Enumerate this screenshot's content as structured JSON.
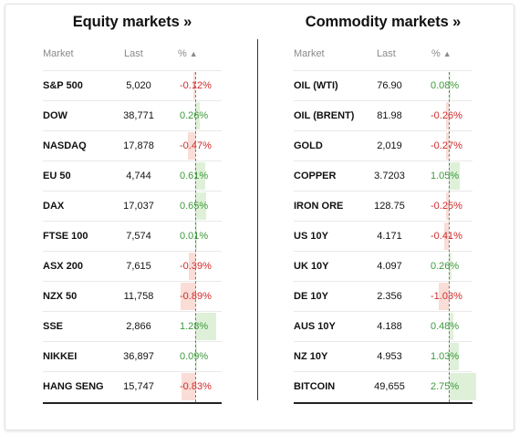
{
  "equity": {
    "title": "Equity markets",
    "title_suffix": "»",
    "headers": {
      "market": "Market",
      "last": "Last",
      "pct": "%",
      "sort_glyph": "▲"
    },
    "rows": [
      {
        "name": "S&P 500",
        "last": "5,020",
        "pct": "-0.12%",
        "value": -0.12
      },
      {
        "name": "DOW",
        "last": "38,771",
        "pct": "0.26%",
        "value": 0.26
      },
      {
        "name": "NASDAQ",
        "last": "17,878",
        "pct": "-0.47%",
        "value": -0.47
      },
      {
        "name": "EU 50",
        "last": "4,744",
        "pct": "0.61%",
        "value": 0.61
      },
      {
        "name": "DAX",
        "last": "17,037",
        "pct": "0.65%",
        "value": 0.65
      },
      {
        "name": "FTSE 100",
        "last": "7,574",
        "pct": "0.01%",
        "value": 0.01
      },
      {
        "name": "ASX 200",
        "last": "7,615",
        "pct": "-0.39%",
        "value": -0.39
      },
      {
        "name": "NZX 50",
        "last": "11,758",
        "pct": "-0.89%",
        "value": -0.89
      },
      {
        "name": "SSE",
        "last": "2,866",
        "pct": "1.28%",
        "value": 1.28
      },
      {
        "name": "NIKKEI",
        "last": "36,897",
        "pct": "0.09%",
        "value": 0.09
      },
      {
        "name": "HANG SENG",
        "last": "15,747",
        "pct": "-0.83%",
        "value": -0.83
      }
    ]
  },
  "commodity": {
    "title": "Commodity markets",
    "title_suffix": "»",
    "headers": {
      "market": "Market",
      "last": "Last",
      "pct": "%",
      "sort_glyph": "▲"
    },
    "rows": [
      {
        "name": "OIL (WTI)",
        "last": "76.90",
        "pct": "0.08%",
        "value": 0.08
      },
      {
        "name": "OIL (BRENT)",
        "last": "81.98",
        "pct": "-0.26%",
        "value": -0.26
      },
      {
        "name": "GOLD",
        "last": "2,019",
        "pct": "-0.27%",
        "value": -0.27
      },
      {
        "name": "COPPER",
        "last": "3.7203",
        "pct": "1.05%",
        "value": 1.05
      },
      {
        "name": "IRON ORE",
        "last": "128.75",
        "pct": "-0.25%",
        "value": -0.25
      },
      {
        "name": "US 10Y",
        "last": "4.171",
        "pct": "-0.41%",
        "value": -0.41
      },
      {
        "name": "UK 10Y",
        "last": "4.097",
        "pct": "0.26%",
        "value": 0.26
      },
      {
        "name": "DE 10Y",
        "last": "2.356",
        "pct": "-1.03%",
        "value": -1.03
      },
      {
        "name": "AUS 10Y",
        "last": "4.188",
        "pct": "0.48%",
        "value": 0.48
      },
      {
        "name": "NZ 10Y",
        "last": "4.953",
        "pct": "1.03%",
        "value": 1.03
      },
      {
        "name": "BITCOIN",
        "last": "49,655",
        "pct": "2.75%",
        "value": 2.75
      }
    ]
  },
  "colors": {
    "positive_text": "#3c9a3c",
    "negative_text": "#d02b2b",
    "positive_bar": "#dff0d8",
    "negative_bar": "#f9ddd6"
  }
}
